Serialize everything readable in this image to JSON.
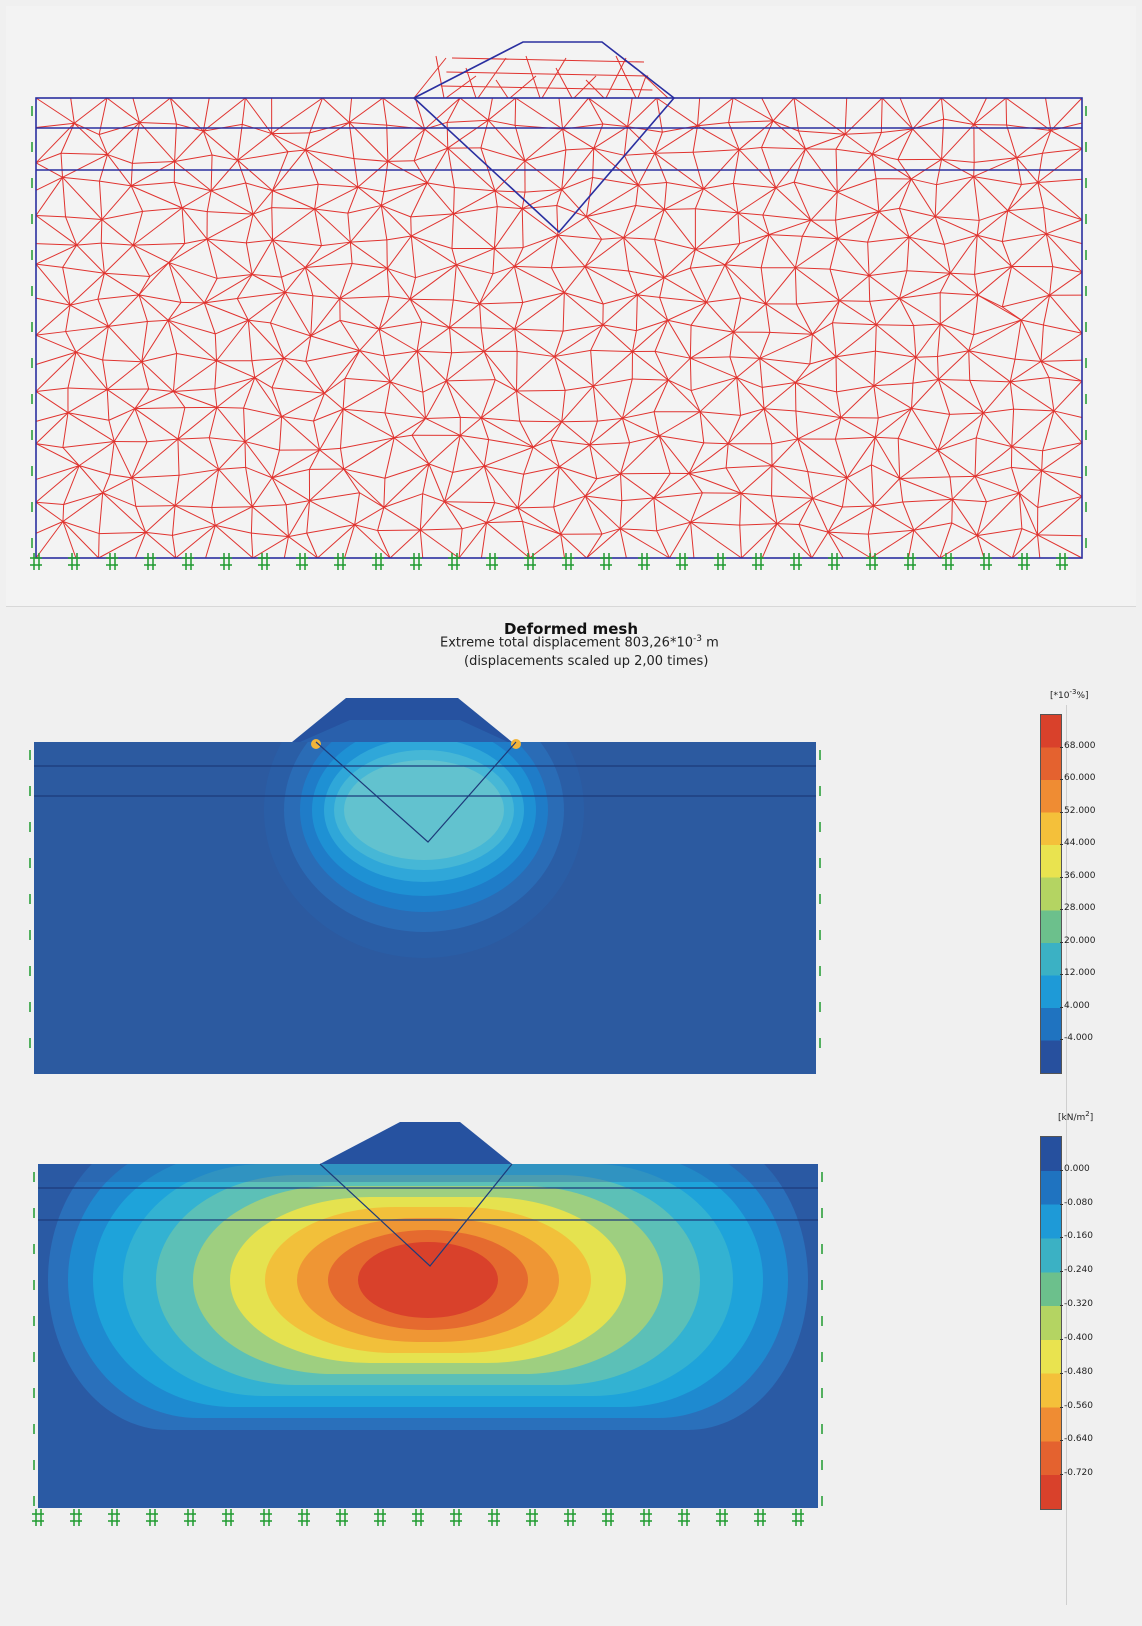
{
  "header": {
    "title": "Deformed mesh",
    "subtitle_prefix": "Extreme total displacement 803,26*10",
    "subtitle_exp": "-3",
    "subtitle_unit": " m",
    "scale_note": "(displacements scaled up 2,00 times)"
  },
  "strain_legend": {
    "unit_prefix": "[*10",
    "unit_exp": "-3",
    "unit_suffix": "%]",
    "labels": [
      "68.000",
      "60.000",
      "52.000",
      "44.000",
      "36.000",
      "28.000",
      "20.000",
      "12.000",
      "4.000",
      "-4.000"
    ],
    "colors": [
      "#d9412b",
      "#e4622f",
      "#ef8c33",
      "#f4c03a",
      "#e9e34f",
      "#b4d462",
      "#6cc08c",
      "#3bb1c4",
      "#1e9ad7",
      "#1f73c0",
      "#27509e"
    ]
  },
  "stress_legend": {
    "unit_prefix": "[kN/m",
    "unit_exp": "2",
    "unit_suffix": "]",
    "labels": [
      "0.000",
      "-0.080",
      "-0.160",
      "-0.240",
      "-0.320",
      "-0.400",
      "-0.480",
      "-0.560",
      "-0.640",
      "-0.720"
    ],
    "colors": [
      "#26509e",
      "#1f73c0",
      "#1e9ad7",
      "#3bb1c4",
      "#6cc08c",
      "#b4d462",
      "#e9e34f",
      "#f4c03a",
      "#ef8c33",
      "#e4622f",
      "#d9412b"
    ]
  },
  "colors": {
    "mesh_line": "#e0332f",
    "boundary_line": "#2a2fa0",
    "fixity": "#1f9a2f",
    "soil_base": "#2c5aa0"
  }
}
